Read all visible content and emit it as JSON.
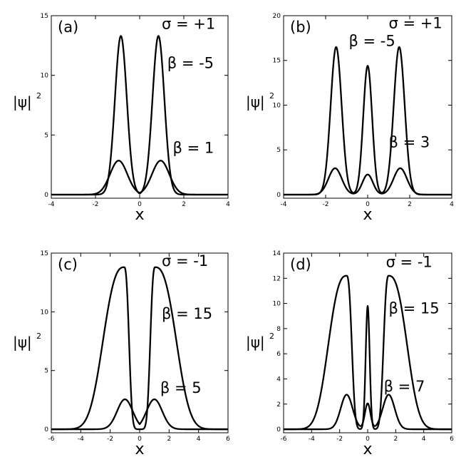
{
  "chart_data": [
    {
      "type": "line",
      "panel_label": "(a)",
      "xlabel": "x",
      "ylabel_base": "|ψ|",
      "ylabel_sup": "2",
      "xlim": [
        -4,
        4
      ],
      "ylim": [
        0,
        15
      ],
      "xticks": [
        -4,
        -2,
        0,
        2,
        4
      ],
      "yticks": [
        0,
        5,
        10,
        15
      ],
      "curve_params": [
        {
          "shape": "pair",
          "amp": 13.3,
          "center": 0.85,
          "width": 0.38,
          "power": 2
        },
        {
          "shape": "pair",
          "amp": 2.85,
          "center": 0.95,
          "width": 0.55,
          "power": 2
        }
      ],
      "annotations": [
        {
          "text": "σ = +1",
          "x": 1.0,
          "y": 13.9
        },
        {
          "text": "β = -5",
          "x": 1.25,
          "y": 10.6
        },
        {
          "text": "β = 1",
          "x": 1.5,
          "y": 3.5
        }
      ]
    },
    {
      "type": "line",
      "panel_label": "(b)",
      "xlabel": "x",
      "ylabel_base": "|ψ|",
      "ylabel_sup": "2",
      "xlim": [
        -4,
        4
      ],
      "ylim": [
        0,
        20
      ],
      "xticks": [
        -4,
        -2,
        0,
        2,
        4
      ],
      "yticks": [
        0,
        5,
        10,
        15,
        20
      ],
      "curve_params": [
        {
          "shape": "triple",
          "amp_outer": 16.5,
          "amp_center": 14.4,
          "center": 1.5,
          "width_outer": 0.37,
          "width_center": 0.3,
          "power": 2
        },
        {
          "shape": "triple",
          "amp_outer": 2.95,
          "amp_center": 2.25,
          "center": 1.55,
          "width_outer": 0.45,
          "width_center": 0.35,
          "power": 2
        }
      ],
      "annotations": [
        {
          "text": "σ = +1",
          "x": 1.0,
          "y": 18.6
        },
        {
          "text": "β = -5",
          "x": -0.9,
          "y": 16.6
        },
        {
          "text": "β = 3",
          "x": 1.0,
          "y": 5.3
        }
      ]
    },
    {
      "type": "line",
      "panel_label": "(c)",
      "xlabel": "x",
      "ylabel_base": "|ψ|",
      "ylabel_sup": "2",
      "xlim": [
        -6,
        6
      ],
      "ylim": [
        0,
        15
      ],
      "xticks": [
        -6,
        -4,
        -2,
        0,
        2,
        4,
        6
      ],
      "yticks": [
        0,
        5,
        10,
        15
      ],
      "curve_params": [
        {
          "shape": "wide_pair",
          "amp": 13.8,
          "center": 1.05,
          "width_in": 0.4,
          "width_out": 1.75,
          "power": 2.6
        },
        {
          "shape": "pair",
          "amp": 2.55,
          "center": 1.0,
          "width": 0.75,
          "power": 2
        }
      ],
      "annotations": [
        {
          "text": "σ = -1",
          "x": 1.5,
          "y": 13.9
        },
        {
          "text": "β = 15",
          "x": 1.5,
          "y": 9.4
        },
        {
          "text": "β = 5",
          "x": 1.4,
          "y": 3.1
        }
      ]
    },
    {
      "type": "line",
      "panel_label": "(d)",
      "xlabel": "x",
      "ylabel_base": "|ψ|",
      "ylabel_sup": "2",
      "xlim": [
        -6,
        6
      ],
      "ylim": [
        0,
        14
      ],
      "xticks": [
        -6,
        -4,
        -2,
        0,
        2,
        4,
        6
      ],
      "yticks": [
        0,
        2,
        4,
        6,
        8,
        10,
        12,
        14
      ],
      "curve_params": [
        {
          "shape": "wide_triple",
          "amp_outer": 12.2,
          "amp_center": 9.8,
          "center": 1.5,
          "width_in": 0.45,
          "width_out": 1.6,
          "width_center": 0.2,
          "power": 2.6
        },
        {
          "shape": "triple",
          "amp_outer": 2.75,
          "amp_center": 2.05,
          "center": 1.5,
          "width_outer": 0.6,
          "width_center": 0.28,
          "power": 2
        }
      ],
      "annotations": [
        {
          "text": "σ = -1",
          "x": 1.3,
          "y": 12.9
        },
        {
          "text": "β = 15",
          "x": 1.5,
          "y": 9.2
        },
        {
          "text": "β = 7",
          "x": 1.15,
          "y": 3.0
        }
      ]
    }
  ]
}
